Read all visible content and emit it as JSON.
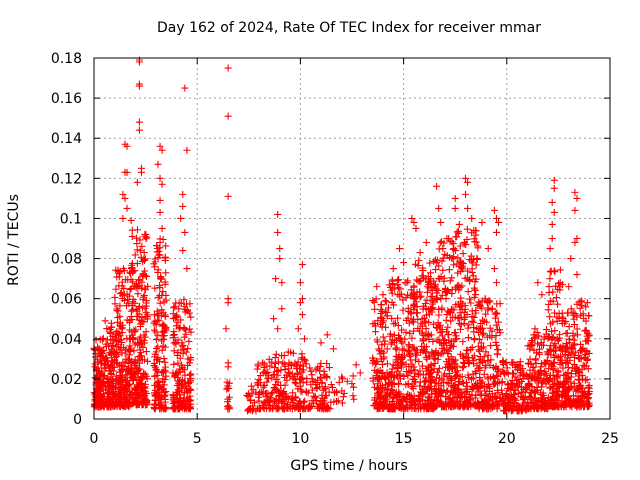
{
  "chart_data": {
    "type": "scatter",
    "title": "Day 162 of 2024, Rate Of TEC Index for receiver mmar",
    "xlabel": "GPS time / hours",
    "ylabel": "ROTI / TECUs",
    "xlim": [
      0,
      25
    ],
    "ylim": [
      0,
      0.18
    ],
    "x_ticks": [
      0,
      5,
      10,
      15,
      20,
      25
    ],
    "y_ticks": [
      0,
      0.02,
      0.04,
      0.06,
      0.08,
      0.1,
      0.12,
      0.14,
      0.16,
      0.18
    ],
    "x_tick_labels": [
      "0",
      "5",
      "10",
      "15",
      "20",
      "25"
    ],
    "y_tick_labels": [
      "0",
      "0.02",
      "0.04",
      "0.06",
      "0.08",
      "0.1",
      "0.12",
      "0.14",
      "0.16",
      "0.18"
    ],
    "grid": true,
    "marker": "plus",
    "color": "#ff0000",
    "density": [
      {
        "x0": 0.0,
        "x1": 0.4,
        "base": 0.006,
        "top": 0.04,
        "n": 120
      },
      {
        "x0": 0.4,
        "x1": 1.0,
        "base": 0.006,
        "top": 0.05,
        "n": 150
      },
      {
        "x0": 1.0,
        "x1": 1.8,
        "base": 0.006,
        "top": 0.075,
        "n": 220
      },
      {
        "x0": 1.8,
        "x1": 2.6,
        "base": 0.007,
        "top": 0.095,
        "n": 240
      },
      {
        "x0": 2.9,
        "x1": 3.5,
        "base": 0.005,
        "top": 0.09,
        "n": 170
      },
      {
        "x0": 3.8,
        "x1": 4.7,
        "base": 0.005,
        "top": 0.06,
        "n": 190
      },
      {
        "x0": 6.4,
        "x1": 6.6,
        "base": 0.005,
        "top": 0.02,
        "n": 14
      },
      {
        "x0": 7.4,
        "x1": 7.9,
        "base": 0.004,
        "top": 0.018,
        "n": 20
      },
      {
        "x0": 7.9,
        "x1": 8.6,
        "base": 0.005,
        "top": 0.03,
        "n": 60
      },
      {
        "x0": 8.6,
        "x1": 9.5,
        "base": 0.005,
        "top": 0.035,
        "n": 80
      },
      {
        "x0": 9.5,
        "x1": 10.4,
        "base": 0.005,
        "top": 0.035,
        "n": 80
      },
      {
        "x0": 10.4,
        "x1": 11.5,
        "base": 0.005,
        "top": 0.028,
        "n": 80
      },
      {
        "x0": 11.5,
        "x1": 12.6,
        "base": 0.008,
        "top": 0.022,
        "n": 20
      },
      {
        "x0": 13.5,
        "x1": 14.3,
        "base": 0.005,
        "top": 0.06,
        "n": 150
      },
      {
        "x0": 14.3,
        "x1": 15.5,
        "base": 0.005,
        "top": 0.07,
        "n": 220
      },
      {
        "x0": 15.5,
        "x1": 16.5,
        "base": 0.005,
        "top": 0.08,
        "n": 240
      },
      {
        "x0": 16.5,
        "x1": 17.5,
        "base": 0.006,
        "top": 0.09,
        "n": 240
      },
      {
        "x0": 17.5,
        "x1": 18.6,
        "base": 0.006,
        "top": 0.095,
        "n": 240
      },
      {
        "x0": 18.6,
        "x1": 19.7,
        "base": 0.005,
        "top": 0.06,
        "n": 180
      },
      {
        "x0": 19.7,
        "x1": 21.0,
        "base": 0.004,
        "top": 0.03,
        "n": 160
      },
      {
        "x0": 21.0,
        "x1": 22.0,
        "base": 0.005,
        "top": 0.045,
        "n": 160
      },
      {
        "x0": 22.0,
        "x1": 22.6,
        "base": 0.006,
        "top": 0.075,
        "n": 140
      },
      {
        "x0": 22.6,
        "x1": 23.3,
        "base": 0.006,
        "top": 0.055,
        "n": 140
      },
      {
        "x0": 23.3,
        "x1": 24.0,
        "base": 0.006,
        "top": 0.06,
        "n": 140
      }
    ],
    "outliers": [
      [
        2.2,
        0.179
      ],
      [
        2.2,
        0.178
      ],
      [
        2.2,
        0.167
      ],
      [
        2.2,
        0.166
      ],
      [
        2.2,
        0.148
      ],
      [
        2.2,
        0.144
      ],
      [
        1.5,
        0.137
      ],
      [
        1.6,
        0.136
      ],
      [
        1.5,
        0.123
      ],
      [
        1.6,
        0.123
      ],
      [
        2.3,
        0.125
      ],
      [
        2.3,
        0.123
      ],
      [
        1.4,
        0.112
      ],
      [
        1.5,
        0.11
      ],
      [
        1.4,
        0.1
      ],
      [
        1.6,
        0.105
      ],
      [
        1.8,
        0.099
      ],
      [
        2.1,
        0.118
      ],
      [
        3.2,
        0.136
      ],
      [
        3.3,
        0.134
      ],
      [
        3.1,
        0.127
      ],
      [
        3.2,
        0.12
      ],
      [
        3.3,
        0.117
      ],
      [
        3.2,
        0.109
      ],
      [
        3.2,
        0.103
      ],
      [
        3.3,
        0.095
      ],
      [
        3.2,
        0.088
      ],
      [
        4.4,
        0.165
      ],
      [
        4.5,
        0.134
      ],
      [
        4.3,
        0.112
      ],
      [
        4.3,
        0.106
      ],
      [
        4.2,
        0.1
      ],
      [
        4.4,
        0.093
      ],
      [
        4.3,
        0.084
      ],
      [
        4.5,
        0.075
      ],
      [
        6.5,
        0.175
      ],
      [
        6.5,
        0.151
      ],
      [
        6.5,
        0.111
      ],
      [
        6.5,
        0.06
      ],
      [
        6.5,
        0.058
      ],
      [
        6.4,
        0.045
      ],
      [
        6.5,
        0.028
      ],
      [
        6.5,
        0.026
      ],
      [
        8.9,
        0.102
      ],
      [
        8.9,
        0.093
      ],
      [
        9.0,
        0.085
      ],
      [
        9.0,
        0.08
      ],
      [
        8.8,
        0.07
      ],
      [
        9.1,
        0.068
      ],
      [
        9.1,
        0.055
      ],
      [
        8.7,
        0.05
      ],
      [
        8.9,
        0.045
      ],
      [
        10.1,
        0.077
      ],
      [
        10.0,
        0.068
      ],
      [
        10.1,
        0.06
      ],
      [
        10.0,
        0.058
      ],
      [
        10.1,
        0.052
      ],
      [
        9.9,
        0.045
      ],
      [
        10.2,
        0.04
      ],
      [
        11.3,
        0.042
      ],
      [
        11.0,
        0.038
      ],
      [
        11.6,
        0.035
      ],
      [
        12.7,
        0.027
      ],
      [
        12.9,
        0.023
      ],
      [
        13.7,
        0.066
      ],
      [
        14.0,
        0.062
      ],
      [
        14.5,
        0.075
      ],
      [
        14.8,
        0.085
      ],
      [
        15.0,
        0.078
      ],
      [
        15.4,
        0.1
      ],
      [
        15.5,
        0.098
      ],
      [
        15.6,
        0.095
      ],
      [
        15.8,
        0.083
      ],
      [
        16.1,
        0.088
      ],
      [
        16.6,
        0.116
      ],
      [
        16.7,
        0.105
      ],
      [
        16.8,
        0.098
      ],
      [
        16.9,
        0.085
      ],
      [
        17.1,
        0.09
      ],
      [
        17.5,
        0.11
      ],
      [
        17.5,
        0.105
      ],
      [
        17.7,
        0.097
      ],
      [
        18.0,
        0.12
      ],
      [
        18.1,
        0.118
      ],
      [
        18.0,
        0.112
      ],
      [
        18.1,
        0.105
      ],
      [
        18.3,
        0.1
      ],
      [
        18.4,
        0.094
      ],
      [
        18.8,
        0.098
      ],
      [
        19.1,
        0.085
      ],
      [
        19.4,
        0.104
      ],
      [
        19.5,
        0.1
      ],
      [
        19.6,
        0.098
      ],
      [
        19.5,
        0.093
      ],
      [
        19.4,
        0.075
      ],
      [
        19.5,
        0.068
      ],
      [
        19.3,
        0.055
      ],
      [
        22.3,
        0.119
      ],
      [
        22.3,
        0.115
      ],
      [
        22.2,
        0.108
      ],
      [
        22.3,
        0.103
      ],
      [
        22.2,
        0.097
      ],
      [
        22.2,
        0.09
      ],
      [
        22.1,
        0.085
      ],
      [
        23.3,
        0.113
      ],
      [
        23.4,
        0.11
      ],
      [
        23.3,
        0.104
      ],
      [
        23.4,
        0.09
      ],
      [
        23.3,
        0.088
      ],
      [
        23.1,
        0.08
      ],
      [
        23.4,
        0.072
      ],
      [
        23.0,
        0.066
      ],
      [
        21.5,
        0.068
      ],
      [
        21.7,
        0.062
      ],
      [
        22.7,
        0.067
      ],
      [
        23.9,
        0.058
      ]
    ]
  }
}
